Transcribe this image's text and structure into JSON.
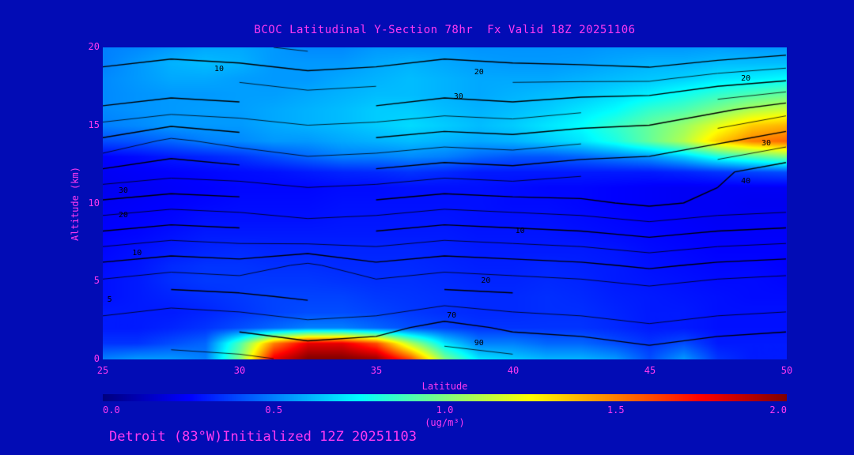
{
  "title": "BCOC Latitudinal Y-Section 78hr  Fx Valid 18Z 20251106",
  "footer": "Detroit (83°W)Initialized 12Z 20251103",
  "colors": {
    "background": "#020cb5",
    "text": "#ff3af2",
    "contour_line": "#000000",
    "contour_label": "#000000"
  },
  "axes": {
    "y_label": "Altitude (km)",
    "x_label": "Latitude",
    "y_ticks": [
      "0",
      "5",
      "10",
      "15",
      "20"
    ],
    "y_tick_values": [
      0,
      5,
      10,
      15,
      20
    ],
    "x_ticks": [
      "25",
      "30",
      "35",
      "40",
      "45",
      "50"
    ],
    "x_tick_values": [
      25,
      30,
      35,
      40,
      45,
      50
    ],
    "x_range": [
      25,
      50
    ],
    "y_range": [
      0,
      20
    ]
  },
  "colorbar": {
    "label": "(ug/m³)",
    "ticks": [
      "0.0",
      "0.5",
      "1.0",
      "1.5",
      "2.0"
    ],
    "tick_values": [
      0.0,
      0.5,
      1.0,
      1.5,
      2.0
    ],
    "range": [
      0.0,
      2.0
    ]
  },
  "chart_data": {
    "type": "heatmap",
    "title": "BCOC Latitudinal Y-Section 78hr  Fx Valid 18Z 20251106",
    "xlabel": "Latitude",
    "ylabel": "Altitude (km)",
    "xlim": [
      25,
      50
    ],
    "ylim": [
      0,
      20
    ],
    "fill_units": "ug/m3",
    "fill_range": [
      0.0,
      2.0
    ],
    "x": [
      25,
      26.25,
      27.5,
      28.75,
      30,
      31.25,
      32.5,
      33.75,
      35,
      36.25,
      37.5,
      38.75,
      40,
      41.25,
      42.5,
      43.75,
      45,
      46.25,
      47.5,
      48.75,
      50
    ],
    "y": [
      0,
      1,
      2,
      3,
      4,
      5,
      6,
      7,
      8,
      9,
      10,
      11,
      12,
      13,
      14,
      15,
      16,
      17,
      18,
      19,
      20
    ],
    "fill_grid": [
      [
        0.5,
        0.55,
        0.55,
        0.5,
        1.0,
        1.8,
        2.0,
        2.0,
        1.95,
        1.6,
        1.0,
        0.7,
        0.65,
        0.6,
        0.6,
        0.55,
        0.4,
        0.55,
        0.35,
        0.3,
        0.3
      ],
      [
        0.35,
        0.35,
        0.4,
        0.45,
        0.9,
        1.5,
        1.8,
        1.8,
        1.6,
        1.1,
        0.7,
        0.5,
        0.5,
        0.45,
        0.45,
        0.4,
        0.35,
        0.4,
        0.3,
        0.3,
        0.3
      ],
      [
        0.3,
        0.3,
        0.32,
        0.35,
        0.4,
        0.45,
        0.5,
        0.5,
        0.45,
        0.4,
        0.38,
        0.35,
        0.35,
        0.35,
        0.35,
        0.33,
        0.3,
        0.3,
        0.28,
        0.28,
        0.28
      ],
      [
        0.3,
        0.3,
        0.3,
        0.32,
        0.35,
        0.38,
        0.4,
        0.4,
        0.38,
        0.36,
        0.34,
        0.33,
        0.33,
        0.34,
        0.34,
        0.32,
        0.3,
        0.3,
        0.28,
        0.28,
        0.28
      ],
      [
        0.28,
        0.3,
        0.32,
        0.34,
        0.36,
        0.38,
        0.38,
        0.38,
        0.36,
        0.35,
        0.34,
        0.33,
        0.33,
        0.34,
        0.33,
        0.31,
        0.3,
        0.29,
        0.28,
        0.27,
        0.27
      ],
      [
        0.28,
        0.3,
        0.34,
        0.36,
        0.36,
        0.36,
        0.36,
        0.35,
        0.34,
        0.34,
        0.33,
        0.32,
        0.32,
        0.33,
        0.32,
        0.3,
        0.29,
        0.28,
        0.27,
        0.27,
        0.26
      ],
      [
        0.27,
        0.29,
        0.33,
        0.35,
        0.35,
        0.34,
        0.34,
        0.33,
        0.33,
        0.33,
        0.32,
        0.31,
        0.31,
        0.32,
        0.31,
        0.3,
        0.28,
        0.27,
        0.26,
        0.26,
        0.25
      ],
      [
        0.26,
        0.28,
        0.3,
        0.32,
        0.33,
        0.32,
        0.32,
        0.32,
        0.32,
        0.32,
        0.31,
        0.3,
        0.3,
        0.3,
        0.3,
        0.29,
        0.27,
        0.26,
        0.25,
        0.25,
        0.25
      ],
      [
        0.25,
        0.26,
        0.28,
        0.3,
        0.3,
        0.3,
        0.3,
        0.3,
        0.3,
        0.3,
        0.3,
        0.29,
        0.29,
        0.29,
        0.28,
        0.27,
        0.26,
        0.25,
        0.24,
        0.24,
        0.24
      ],
      [
        0.24,
        0.25,
        0.26,
        0.28,
        0.28,
        0.28,
        0.28,
        0.29,
        0.29,
        0.29,
        0.29,
        0.28,
        0.28,
        0.28,
        0.27,
        0.26,
        0.25,
        0.24,
        0.23,
        0.23,
        0.23
      ],
      [
        0.23,
        0.24,
        0.25,
        0.26,
        0.27,
        0.27,
        0.27,
        0.28,
        0.28,
        0.28,
        0.28,
        0.28,
        0.27,
        0.27,
        0.26,
        0.25,
        0.24,
        0.23,
        0.23,
        0.22,
        0.22
      ],
      [
        0.22,
        0.23,
        0.24,
        0.25,
        0.26,
        0.26,
        0.26,
        0.27,
        0.27,
        0.28,
        0.28,
        0.28,
        0.27,
        0.26,
        0.26,
        0.25,
        0.24,
        0.23,
        0.23,
        0.23,
        0.23
      ],
      [
        0.23,
        0.24,
        0.25,
        0.26,
        0.27,
        0.28,
        0.3,
        0.32,
        0.33,
        0.35,
        0.33,
        0.3,
        0.3,
        0.3,
        0.3,
        0.3,
        0.3,
        0.32,
        0.35,
        0.38,
        0.4
      ],
      [
        0.25,
        0.27,
        0.3,
        0.32,
        0.35,
        0.4,
        0.45,
        0.5,
        0.5,
        0.52,
        0.5,
        0.45,
        0.42,
        0.42,
        0.45,
        0.5,
        0.55,
        0.65,
        0.8,
        0.9,
        1.0
      ],
      [
        0.4,
        0.42,
        0.45,
        0.5,
        0.52,
        0.55,
        0.55,
        0.58,
        0.6,
        0.62,
        0.6,
        0.58,
        0.6,
        0.65,
        0.7,
        0.8,
        0.95,
        1.1,
        1.35,
        1.5,
        1.55
      ],
      [
        0.5,
        0.52,
        0.55,
        0.55,
        0.55,
        0.58,
        0.6,
        0.62,
        0.65,
        0.68,
        0.65,
        0.62,
        0.65,
        0.7,
        0.75,
        0.85,
        0.95,
        1.05,
        1.2,
        1.35,
        1.4
      ],
      [
        0.52,
        0.54,
        0.55,
        0.56,
        0.56,
        0.58,
        0.6,
        0.62,
        0.65,
        0.65,
        0.62,
        0.6,
        0.62,
        0.65,
        0.7,
        0.75,
        0.85,
        0.9,
        1.0,
        1.1,
        1.15
      ],
      [
        0.52,
        0.54,
        0.55,
        0.55,
        0.56,
        0.56,
        0.58,
        0.6,
        0.62,
        0.62,
        0.6,
        0.58,
        0.6,
        0.62,
        0.64,
        0.68,
        0.72,
        0.78,
        0.85,
        0.9,
        0.95
      ],
      [
        0.52,
        0.55,
        0.58,
        0.58,
        0.56,
        0.55,
        0.55,
        0.58,
        0.6,
        0.62,
        0.6,
        0.58,
        0.58,
        0.58,
        0.6,
        0.62,
        0.64,
        0.66,
        0.7,
        0.72,
        0.75
      ],
      [
        0.5,
        0.55,
        0.6,
        0.62,
        0.6,
        0.55,
        0.55,
        0.55,
        0.58,
        0.6,
        0.58,
        0.56,
        0.55,
        0.55,
        0.56,
        0.58,
        0.6,
        0.6,
        0.62,
        0.62,
        0.62
      ],
      [
        0.5,
        0.52,
        0.55,
        0.58,
        0.58,
        0.55,
        0.52,
        0.52,
        0.55,
        0.55,
        0.55,
        0.54,
        0.54,
        0.54,
        0.54,
        0.55,
        0.55,
        0.55,
        0.56,
        0.55,
        0.55
      ]
    ],
    "contour_x": [
      25,
      27.5,
      30,
      32.5,
      35,
      37.5,
      40,
      42.5,
      45,
      47.5,
      50
    ],
    "contour_y": [
      0,
      2,
      4,
      6,
      8,
      10,
      12,
      14,
      16,
      18,
      20
    ],
    "contour_grid": [
      [
        95,
        97,
        96,
        94,
        95,
        97,
        96,
        95,
        93,
        95,
        96
      ],
      [
        88,
        90,
        89,
        87,
        88,
        92,
        89,
        88,
        86,
        88,
        89
      ],
      [
        80,
        82,
        81,
        79,
        80,
        82,
        81,
        80,
        78,
        80,
        81
      ],
      [
        71,
        73,
        72,
        76,
        71,
        73,
        72,
        71,
        69,
        71,
        72
      ],
      [
        61,
        63,
        62,
        60,
        61,
        63,
        62,
        61,
        59,
        61,
        62
      ],
      [
        51,
        53,
        52,
        50,
        51,
        53,
        52,
        51,
        49,
        51,
        52
      ],
      [
        41,
        43,
        42,
        40,
        41,
        43,
        42,
        44,
        45,
        49,
        53
      ],
      [
        31,
        36,
        33,
        30,
        31,
        33,
        32,
        34,
        35,
        39,
        43
      ],
      [
        21,
        23,
        22,
        20,
        21,
        23,
        22,
        24,
        25,
        29,
        33
      ],
      [
        13,
        15,
        14,
        12,
        13,
        15,
        14,
        14,
        14,
        17,
        19
      ],
      [
        5,
        7,
        6,
        4,
        5,
        7,
        6,
        5,
        3,
        5,
        7
      ]
    ],
    "contour_levels": [
      5,
      10,
      15,
      20,
      25,
      30,
      35,
      40,
      45,
      50,
      55,
      60,
      65,
      70,
      75,
      80,
      85,
      90,
      95
    ],
    "contour_labels": [
      {
        "text": "10",
        "x_pct": 17,
        "y_pct": 7
      },
      {
        "text": "20",
        "x_pct": 55,
        "y_pct": 8
      },
      {
        "text": "30",
        "x_pct": 52,
        "y_pct": 16
      },
      {
        "text": "20",
        "x_pct": 94,
        "y_pct": 10
      },
      {
        "text": "30",
        "x_pct": 97,
        "y_pct": 31
      },
      {
        "text": "40",
        "x_pct": 94,
        "y_pct": 43
      },
      {
        "text": "30",
        "x_pct": 3,
        "y_pct": 46
      },
      {
        "text": "20",
        "x_pct": 3,
        "y_pct": 54
      },
      {
        "text": "10",
        "x_pct": 61,
        "y_pct": 59
      },
      {
        "text": "10",
        "x_pct": 5,
        "y_pct": 66
      },
      {
        "text": "20",
        "x_pct": 56,
        "y_pct": 75
      },
      {
        "text": "70",
        "x_pct": 51,
        "y_pct": 86
      },
      {
        "text": "90",
        "x_pct": 55,
        "y_pct": 95
      },
      {
        "text": "5",
        "x_pct": 1,
        "y_pct": 81
      }
    ]
  }
}
